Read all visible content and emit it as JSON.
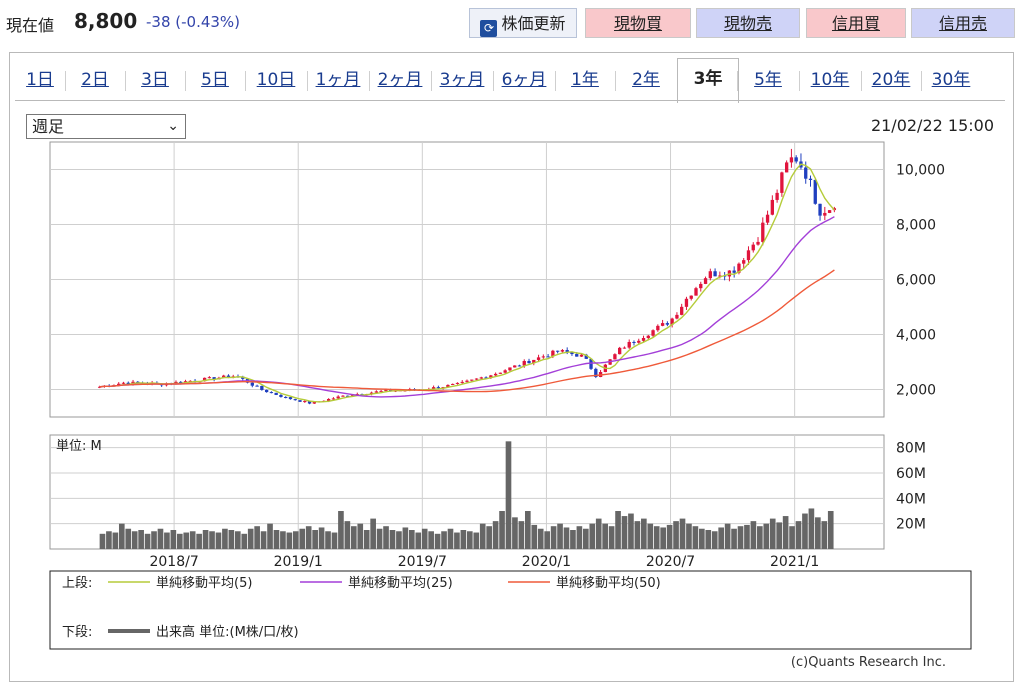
{
  "header": {
    "price_label": "現在値",
    "price_value": "8,800",
    "price_change": "-38 (-0.43%)",
    "refresh_label": "株価更新",
    "buttons": [
      "現物買",
      "現物売",
      "信用買",
      "信用売"
    ]
  },
  "tabs": {
    "items": [
      "1日",
      "2日",
      "3日",
      "5日",
      "10日",
      "1ヶ月",
      "2ヶ月",
      "3ヶ月",
      "6ヶ月",
      "1年",
      "2年",
      "3年",
      "5年",
      "10年",
      "20年",
      "30年"
    ],
    "active": "3年"
  },
  "controls": {
    "period_select": "週足",
    "timestamp": "21/02/22 15:00"
  },
  "chart_data": {
    "type": "line",
    "price_axis": {
      "ylim": [
        1000,
        11000
      ],
      "ticks": [
        "10,000",
        "8,000",
        "6,000",
        "4,000",
        "2,000"
      ],
      "tick_values": [
        10000,
        8000,
        6000,
        4000,
        2000
      ]
    },
    "volume_axis": {
      "unit_label": "単位: M",
      "ylim": [
        0,
        90
      ],
      "ticks": [
        "80M",
        "60M",
        "40M",
        "20M"
      ],
      "tick_values": [
        80,
        60,
        40,
        20
      ]
    },
    "x_ticks": [
      "2018/7",
      "2019/1",
      "2019/7",
      "2020/1",
      "2020/7",
      "2021/1"
    ],
    "x_tick_values": [
      2018.5,
      2019.0,
      2019.5,
      2020.0,
      2020.5,
      2021.0
    ],
    "xlim": [
      2018.0,
      2021.36
    ],
    "price_anchors": [
      [
        2018.2,
        2100
      ],
      [
        2018.3,
        2250
      ],
      [
        2018.45,
        2200
      ],
      [
        2018.6,
        2350
      ],
      [
        2018.75,
        2500
      ],
      [
        2018.85,
        2000
      ],
      [
        2018.95,
        1700
      ],
      [
        2019.05,
        1500
      ],
      [
        2019.2,
        1800
      ],
      [
        2019.35,
        1950
      ],
      [
        2019.5,
        2000
      ],
      [
        2019.65,
        2200
      ],
      [
        2019.8,
        2600
      ],
      [
        2019.95,
        3100
      ],
      [
        2020.05,
        3400
      ],
      [
        2020.15,
        3200
      ],
      [
        2020.2,
        2500
      ],
      [
        2020.3,
        3500
      ],
      [
        2020.4,
        4000
      ],
      [
        2020.5,
        4500
      ],
      [
        2020.58,
        5500
      ],
      [
        2020.65,
        6200
      ],
      [
        2020.75,
        6300
      ],
      [
        2020.85,
        7500
      ],
      [
        2020.92,
        9000
      ],
      [
        2020.97,
        10200
      ],
      [
        2021.0,
        10500
      ],
      [
        2021.05,
        9800
      ],
      [
        2021.1,
        8500
      ],
      [
        2021.14,
        8600
      ],
      [
        2021.16,
        8800
      ]
    ],
    "volume_values": [
      12,
      14,
      13,
      20,
      16,
      14,
      15,
      12,
      14,
      16,
      13,
      15,
      12,
      13,
      14,
      12,
      15,
      14,
      13,
      16,
      15,
      14,
      12,
      16,
      18,
      14,
      20,
      15,
      14,
      13,
      14,
      16,
      18,
      15,
      17,
      14,
      13,
      30,
      22,
      18,
      20,
      15,
      24,
      16,
      18,
      15,
      14,
      17,
      15,
      13,
      16,
      14,
      12,
      14,
      16,
      13,
      15,
      14,
      13,
      20,
      18,
      22,
      30,
      85,
      25,
      22,
      30,
      19,
      16,
      14,
      18,
      20,
      17,
      15,
      18,
      16,
      20,
      24,
      20,
      18,
      30,
      26,
      28,
      22,
      24,
      20,
      18,
      17,
      19,
      22,
      24,
      20,
      18,
      16,
      15,
      14,
      17,
      20,
      16,
      18,
      19,
      22,
      18,
      20,
      24,
      21,
      26,
      18,
      22,
      28,
      32,
      25,
      22,
      30
    ],
    "series": [
      {
        "name": "単純移動平均(5)",
        "color": "#b5cc3a"
      },
      {
        "name": "単純移動平均(25)",
        "color": "#a33fd8"
      },
      {
        "name": "単純移動平均(50)",
        "color": "#ef5a3a"
      }
    ],
    "volume_series": {
      "name": "出来高 単位:(M株/口/枚)",
      "color": "#666666"
    },
    "legend": {
      "upper_label": "上段:",
      "lower_label": "下段:"
    }
  },
  "footer": {
    "copyright": "(c)Quants Research Inc."
  }
}
